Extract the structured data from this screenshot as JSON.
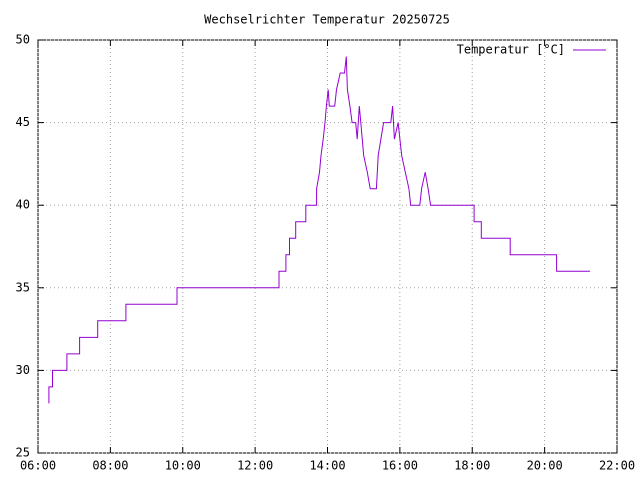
{
  "chart_data": {
    "type": "line",
    "title": "Wechselrichter Temperatur 20250725",
    "x": [
      6.3,
      6.3,
      6.4,
      6.4,
      6.8,
      6.8,
      7.15,
      7.15,
      7.65,
      7.65,
      8.43,
      8.43,
      9.84,
      9.84,
      12.66,
      12.66,
      12.85,
      12.85,
      12.95,
      12.95,
      13.12,
      13.12,
      13.4,
      13.4,
      13.7,
      13.7,
      13.78,
      13.82,
      13.88,
      13.93,
      13.97,
      14.02,
      14.05,
      14.2,
      14.25,
      14.35,
      14.47,
      14.52,
      14.55,
      14.62,
      14.68,
      14.72,
      14.78,
      14.82,
      14.88,
      14.92,
      15.0,
      15.1,
      15.18,
      15.35,
      15.4,
      15.55,
      15.75,
      15.8,
      15.85,
      15.95,
      16.05,
      16.15,
      16.25,
      16.3,
      16.55,
      16.6,
      16.7,
      16.78,
      16.85,
      17.05,
      18.05,
      18.05,
      18.25,
      18.25,
      19.05,
      19.05,
      20.33,
      20.33,
      21.25
    ],
    "series": [
      {
        "name": "Temperatur [°C]",
        "color": "#9400d3",
        "values": [
          28,
          29,
          29,
          30,
          30,
          31,
          31,
          32,
          32,
          33,
          33,
          34,
          34,
          35,
          35,
          36,
          36,
          37,
          37,
          38,
          38,
          39,
          39,
          40,
          40,
          41,
          42,
          43,
          44,
          45,
          46,
          47,
          46,
          46,
          47,
          48,
          48,
          49,
          47,
          46,
          45,
          45,
          45,
          44,
          46,
          45,
          43,
          42,
          41,
          41,
          43,
          45,
          45,
          46,
          44,
          45,
          43,
          42,
          41,
          40,
          40,
          41,
          42,
          41,
          40,
          40,
          40,
          39,
          39,
          38,
          38,
          37,
          37,
          36,
          36
        ]
      }
    ],
    "xlim": [
      6,
      22
    ],
    "xticks": [
      {
        "value": 6,
        "label": "06:00"
      },
      {
        "value": 8,
        "label": "08:00"
      },
      {
        "value": 10,
        "label": "10:00"
      },
      {
        "value": 12,
        "label": "12:00"
      },
      {
        "value": 14,
        "label": "14:00"
      },
      {
        "value": 16,
        "label": "16:00"
      },
      {
        "value": 18,
        "label": "18:00"
      },
      {
        "value": 20,
        "label": "20:00"
      },
      {
        "value": 22,
        "label": "22:00"
      }
    ],
    "ylim": [
      25,
      50
    ],
    "yticks": [
      25,
      30,
      35,
      40,
      45,
      50
    ],
    "grid": true,
    "legend": "top-right"
  }
}
